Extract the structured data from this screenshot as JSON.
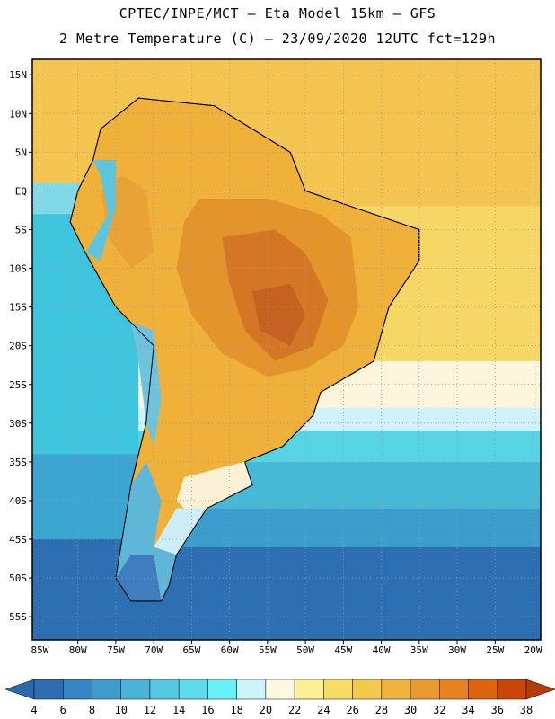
{
  "header": {
    "line1": "CPTEC/INPE/MCT –  Eta Model 15km – GFS",
    "line2": "2 Metre Temperature (C) – 23/09/2020 12UTC fct=129h"
  },
  "map": {
    "lat_range": [
      17,
      -58
    ],
    "lon_range": [
      -86,
      -19
    ],
    "lat_ticks": [
      {
        "value": 15,
        "label": "15N"
      },
      {
        "value": 10,
        "label": "10N"
      },
      {
        "value": 5,
        "label": "5N"
      },
      {
        "value": 0,
        "label": "EQ"
      },
      {
        "value": -5,
        "label": "5S"
      },
      {
        "value": -10,
        "label": "10S"
      },
      {
        "value": -15,
        "label": "15S"
      },
      {
        "value": -20,
        "label": "20S"
      },
      {
        "value": -25,
        "label": "25S"
      },
      {
        "value": -30,
        "label": "30S"
      },
      {
        "value": -35,
        "label": "35S"
      },
      {
        "value": -40,
        "label": "40S"
      },
      {
        "value": -45,
        "label": "45S"
      },
      {
        "value": -50,
        "label": "50S"
      },
      {
        "value": -55,
        "label": "55S"
      }
    ],
    "lon_ticks": [
      {
        "value": -85,
        "label": "85W"
      },
      {
        "value": -80,
        "label": "80W"
      },
      {
        "value": -75,
        "label": "75W"
      },
      {
        "value": -70,
        "label": "70W"
      },
      {
        "value": -65,
        "label": "65W"
      },
      {
        "value": -60,
        "label": "60W"
      },
      {
        "value": -55,
        "label": "55W"
      },
      {
        "value": -50,
        "label": "50W"
      },
      {
        "value": -45,
        "label": "45W"
      },
      {
        "value": -40,
        "label": "40W"
      },
      {
        "value": -35,
        "label": "35W"
      },
      {
        "value": -30,
        "label": "30W"
      },
      {
        "value": -25,
        "label": "25W"
      },
      {
        "value": -20,
        "label": "20W"
      }
    ],
    "ocean_bands": [
      {
        "lat_top": 17,
        "lat_bottom": -2,
        "color": "#f3c44f"
      },
      {
        "lat_top": -2,
        "lat_bottom": -22,
        "color": "#f6d766"
      },
      {
        "lat_top": -22,
        "lat_bottom": -28,
        "color": "#fdf5dc"
      },
      {
        "lat_top": -28,
        "lat_bottom": -31,
        "color": "#cff2fb"
      },
      {
        "lat_top": -31,
        "lat_bottom": -35,
        "color": "#57d4e4"
      },
      {
        "lat_top": -35,
        "lat_bottom": -41,
        "color": "#45b9d6"
      },
      {
        "lat_top": -41,
        "lat_bottom": -46,
        "color": "#3a9dcc"
      },
      {
        "lat_top": -46,
        "lat_bottom": -58,
        "color": "#2d6fb3"
      }
    ],
    "pacific_bands": [
      {
        "lat_top": 17,
        "lat_bottom": 1,
        "color": "#f3c44f"
      },
      {
        "lat_top": 1,
        "lat_bottom": -3,
        "color": "#7fd9e6"
      },
      {
        "lat_top": -3,
        "lat_bottom": -34,
        "color": "#3fc4de"
      },
      {
        "lat_top": -34,
        "lat_bottom": -45,
        "color": "#3aa6d1"
      },
      {
        "lat_top": -45,
        "lat_bottom": -58,
        "color": "#2d6fb3"
      }
    ],
    "land_regions": [
      {
        "color": "#f0b13a",
        "points": [
          [
            -77,
            8
          ],
          [
            -72,
            12
          ],
          [
            -62,
            11
          ],
          [
            -52,
            5
          ],
          [
            -50,
            0
          ],
          [
            -44,
            -2
          ],
          [
            -35,
            -5
          ],
          [
            -35,
            -9
          ],
          [
            -39,
            -15
          ],
          [
            -41,
            -22
          ],
          [
            -48,
            -26
          ],
          [
            -49,
            -29
          ],
          [
            -53,
            -33
          ],
          [
            -58,
            -35
          ],
          [
            -57,
            -38
          ],
          [
            -63,
            -41
          ],
          [
            -65,
            -44
          ],
          [
            -67,
            -47
          ],
          [
            -68,
            -51
          ],
          [
            -69,
            -53
          ],
          [
            -73,
            -53
          ],
          [
            -75,
            -50
          ],
          [
            -74,
            -44
          ],
          [
            -73,
            -38
          ],
          [
            -71,
            -30
          ],
          [
            -70,
            -20
          ],
          [
            -75,
            -15
          ],
          [
            -79,
            -8
          ],
          [
            -81,
            -4
          ],
          [
            -80,
            0
          ],
          [
            -78,
            4
          ]
        ]
      },
      {
        "color": "#e3952b",
        "points": [
          [
            -64,
            -1
          ],
          [
            -55,
            -1
          ],
          [
            -48,
            -3
          ],
          [
            -44,
            -6
          ],
          [
            -43,
            -15
          ],
          [
            -45,
            -20
          ],
          [
            -50,
            -23
          ],
          [
            -55,
            -24
          ],
          [
            -61,
            -21
          ],
          [
            -65,
            -16
          ],
          [
            -67,
            -10
          ],
          [
            -66,
            -4
          ]
        ]
      },
      {
        "color": "#d37725",
        "points": [
          [
            -61,
            -6
          ],
          [
            -54,
            -5
          ],
          [
            -50,
            -8
          ],
          [
            -47,
            -14
          ],
          [
            -49,
            -20
          ],
          [
            -54,
            -22
          ],
          [
            -58,
            -18
          ],
          [
            -60,
            -12
          ]
        ]
      },
      {
        "color": "#c56221",
        "points": [
          [
            -57,
            -13
          ],
          [
            -52,
            -12
          ],
          [
            -50,
            -16
          ],
          [
            -52,
            -20
          ],
          [
            -56,
            -18
          ]
        ]
      },
      {
        "color": "#e9a236",
        "points": [
          [
            -77,
            0
          ],
          [
            -74,
            2
          ],
          [
            -71,
            0
          ],
          [
            -70,
            -8
          ],
          [
            -73,
            -10
          ],
          [
            -76,
            -6
          ]
        ]
      },
      {
        "color": "#fbf1d6",
        "points": [
          [
            -66,
            -37
          ],
          [
            -58,
            -35
          ],
          [
            -57,
            -38
          ],
          [
            -63,
            -41
          ],
          [
            -65,
            -42
          ],
          [
            -67,
            -40
          ]
        ]
      },
      {
        "color": "#cdeef6",
        "points": [
          [
            -67,
            -41
          ],
          [
            -63,
            -41
          ],
          [
            -65,
            -44
          ],
          [
            -67,
            -47
          ],
          [
            -70,
            -46
          ]
        ]
      },
      {
        "color": "#5fb7d7",
        "points": [
          [
            -73,
            -38
          ],
          [
            -71,
            -35
          ],
          [
            -69,
            -40
          ],
          [
            -70,
            -46
          ],
          [
            -67,
            -47
          ],
          [
            -68,
            -51
          ],
          [
            -69,
            -53
          ],
          [
            -73,
            -53
          ],
          [
            -75,
            -50
          ],
          [
            -74,
            -44
          ]
        ]
      },
      {
        "color": "#3e7ec0",
        "points": [
          [
            -73,
            -47
          ],
          [
            -70,
            -47
          ],
          [
            -69,
            -53
          ],
          [
            -73,
            -53
          ],
          [
            -75,
            -50
          ]
        ]
      },
      {
        "color": "#5fc5dc",
        "points": [
          [
            -78,
            4
          ],
          [
            -77,
            2
          ],
          [
            -76,
            -3
          ],
          [
            -79,
            -8
          ],
          [
            -77,
            -9
          ],
          [
            -75,
            -2
          ],
          [
            -75,
            4
          ]
        ]
      },
      {
        "color": "#6fc3dc",
        "points": [
          [
            -73,
            -17
          ],
          [
            -70,
            -18
          ],
          [
            -69,
            -27
          ],
          [
            -70,
            -33
          ],
          [
            -71,
            -30
          ],
          [
            -72,
            -22
          ]
        ]
      }
    ],
    "legend": {
      "colors": [
        "#2e6db2",
        "#3487c2",
        "#3e9ccd",
        "#49b3d8",
        "#55c8e0",
        "#5edcea",
        "#68f1f6",
        "#cdf3fb",
        "#fdf8e1",
        "#fbf093",
        "#f7dd66",
        "#f3c94e",
        "#eeb43d",
        "#e99a2f",
        "#e78222",
        "#de6410",
        "#c9460a"
      ],
      "end_colors": [
        "#2c6ab0",
        "#b33c08"
      ],
      "labels": [
        "4",
        "6",
        "8",
        "10",
        "12",
        "14",
        "16",
        "18",
        "20",
        "22",
        "24",
        "26",
        "28",
        "30",
        "32",
        "34",
        "36",
        "38"
      ]
    }
  }
}
